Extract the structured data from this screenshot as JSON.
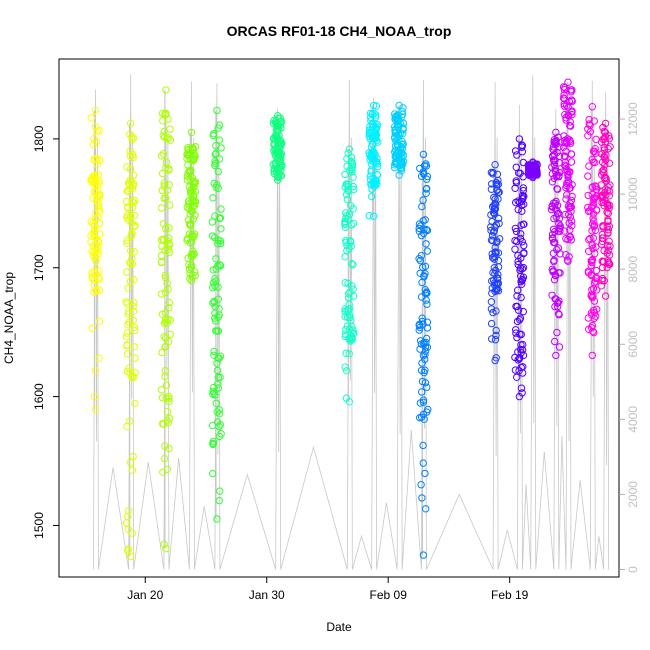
{
  "chart_data": {
    "type": "scatter",
    "title": "ORCAS RF01-18 CH4_NOAA_trop",
    "xlabel": "Date",
    "ylabel": "CH4_NOAA_trop",
    "x_ticks": [
      "Jan 20",
      "Jan 30",
      "Feb 09",
      "Feb 19"
    ],
    "x_tick_days": [
      20,
      30,
      40,
      50
    ],
    "xlim_days": [
      12.9,
      59.0
    ],
    "ylim": [
      1460,
      1862
    ],
    "y_ticks": [
      1500,
      1600,
      1700,
      1800
    ],
    "y2_ticks": [
      0,
      2000,
      4000,
      6000,
      8000,
      10000,
      12000
    ],
    "y2lim": [
      -200,
      13600
    ],
    "secondary_series_color": "#c8c8c8",
    "grid": false,
    "series": [
      {
        "day": 15.9,
        "color": "#ffff00",
        "ymin": 1590,
        "ymax": 1822,
        "core_min": 1680,
        "core_max": 1810
      },
      {
        "day": 18.8,
        "color": "#e0ff00",
        "ymin": 1476,
        "ymax": 1812,
        "core_min": 1610,
        "core_max": 1805
      },
      {
        "day": 21.7,
        "color": "#b0ff00",
        "ymin": 1482,
        "ymax": 1838,
        "core_min": 1560,
        "core_max": 1830
      },
      {
        "day": 23.8,
        "color": "#80ff00",
        "ymin": 1690,
        "ymax": 1805,
        "core_min": 1700,
        "core_max": 1795
      },
      {
        "day": 25.9,
        "color": "#30ff30",
        "ymin": 1505,
        "ymax": 1822,
        "core_min": 1560,
        "core_max": 1800
      },
      {
        "day": 30.9,
        "color": "#10ff80",
        "ymin": 1768,
        "ymax": 1818,
        "core_min": 1770,
        "core_max": 1815
      },
      {
        "day": 36.8,
        "color": "#10ffc8",
        "ymin": 1596,
        "ymax": 1792,
        "core_min": 1640,
        "core_max": 1790
      },
      {
        "day": 38.8,
        "color": "#00f0ff",
        "ymin": 1740,
        "ymax": 1826,
        "core_min": 1760,
        "core_max": 1820
      },
      {
        "day": 40.9,
        "color": "#00d0ff",
        "ymin": 1772,
        "ymax": 1826,
        "core_min": 1775,
        "core_max": 1820
      },
      {
        "day": 42.9,
        "color": "#0080ff",
        "ymin": 1477,
        "ymax": 1788,
        "core_min": 1580,
        "core_max": 1785
      },
      {
        "day": 48.8,
        "color": "#2040ff",
        "ymin": 1628,
        "ymax": 1780,
        "core_min": 1680,
        "core_max": 1775
      },
      {
        "day": 50.8,
        "color": "#5000ff",
        "ymin": 1600,
        "ymax": 1800,
        "core_min": 1620,
        "core_max": 1798
      },
      {
        "day": 51.9,
        "color": "#7a00ff",
        "ymin": 1770,
        "ymax": 1782,
        "core_min": 1772,
        "core_max": 1780
      },
      {
        "day": 53.8,
        "color": "#c000ff",
        "ymin": 1632,
        "ymax": 1805,
        "core_min": 1660,
        "core_max": 1800
      },
      {
        "day": 54.8,
        "color": "#e000ff",
        "ymin": 1705,
        "ymax": 1844,
        "core_min": 1720,
        "core_max": 1835
      },
      {
        "day": 56.8,
        "color": "#ff00f0",
        "ymin": 1632,
        "ymax": 1825,
        "core_min": 1650,
        "core_max": 1815
      },
      {
        "day": 57.9,
        "color": "#ff00c0",
        "ymin": 1678,
        "ymax": 1812,
        "core_min": 1700,
        "core_max": 1808
      }
    ]
  }
}
